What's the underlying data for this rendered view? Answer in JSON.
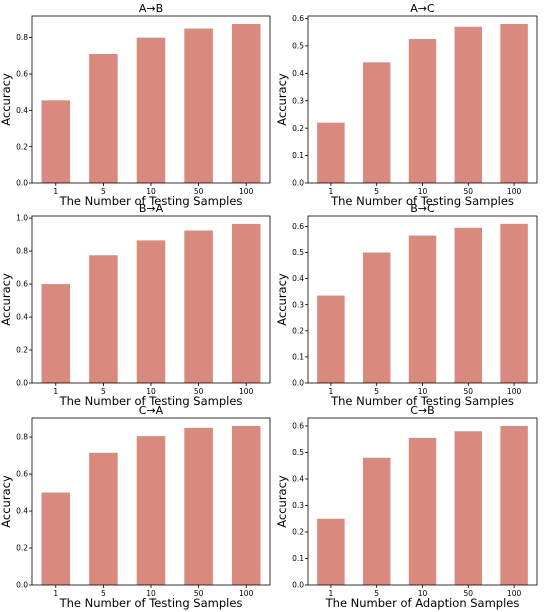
{
  "chart_data": [
    {
      "type": "bar",
      "title": "A→B",
      "xlabel": "The Number of Testing Samples",
      "ylabel": "Accuracy",
      "categories": [
        "1",
        "5",
        "10",
        "50",
        "100"
      ],
      "values": [
        0.455,
        0.71,
        0.8,
        0.85,
        0.875
      ],
      "ylim": [
        0,
        0.919
      ],
      "yticks": [
        0.0,
        0.2,
        0.4,
        0.6,
        0.8
      ],
      "ytick_labels": [
        "0.0",
        "0.2",
        "0.4",
        "0.6",
        "0.8"
      ],
      "color": "#d9897e"
    },
    {
      "type": "bar",
      "title": "A→C",
      "xlabel": "The Number of Testing Samples",
      "ylabel": "Accuracy",
      "categories": [
        "1",
        "5",
        "10",
        "50",
        "100"
      ],
      "values": [
        0.22,
        0.44,
        0.525,
        0.57,
        0.58
      ],
      "ylim": [
        0,
        0.609
      ],
      "yticks": [
        0.0,
        0.1,
        0.2,
        0.3,
        0.4,
        0.5,
        0.6
      ],
      "ytick_labels": [
        "0.0",
        "0.1",
        "0.2",
        "0.3",
        "0.4",
        "0.5",
        "0.6"
      ],
      "color": "#d9897e"
    },
    {
      "type": "bar",
      "title": "B→A",
      "xlabel": "The Number of Testing Samples",
      "ylabel": "Accuracy",
      "categories": [
        "1",
        "5",
        "10",
        "50",
        "100"
      ],
      "values": [
        0.6,
        0.775,
        0.865,
        0.925,
        0.965
      ],
      "ylim": [
        0,
        1.013
      ],
      "yticks": [
        0.0,
        0.2,
        0.4,
        0.6,
        0.8,
        1.0
      ],
      "ytick_labels": [
        "0.0",
        "0.2",
        "0.4",
        "0.6",
        "0.8",
        "1.0"
      ],
      "color": "#d9897e"
    },
    {
      "type": "bar",
      "title": "B→C",
      "xlabel": "The Number of Testing Samples",
      "ylabel": "Accuracy",
      "categories": [
        "1",
        "5",
        "10",
        "50",
        "100"
      ],
      "values": [
        0.335,
        0.5,
        0.565,
        0.595,
        0.61
      ],
      "ylim": [
        0,
        0.64
      ],
      "yticks": [
        0.0,
        0.1,
        0.2,
        0.3,
        0.4,
        0.5,
        0.6
      ],
      "ytick_labels": [
        "0.0",
        "0.1",
        "0.2",
        "0.3",
        "0.4",
        "0.5",
        "0.6"
      ],
      "color": "#d9897e"
    },
    {
      "type": "bar",
      "title": "C→A",
      "xlabel": "The Number of Testing Samples",
      "ylabel": "Accuracy",
      "categories": [
        "1",
        "5",
        "10",
        "50",
        "100"
      ],
      "values": [
        0.5,
        0.715,
        0.805,
        0.85,
        0.86
      ],
      "ylim": [
        0,
        0.903
      ],
      "yticks": [
        0.0,
        0.2,
        0.4,
        0.6,
        0.8
      ],
      "ytick_labels": [
        "0.0",
        "0.2",
        "0.4",
        "0.6",
        "0.8"
      ],
      "color": "#d9897e"
    },
    {
      "type": "bar",
      "title": "C→B",
      "xlabel": "The Number of Adaption Samples",
      "ylabel": "Accuracy",
      "categories": [
        "1",
        "5",
        "10",
        "50",
        "100"
      ],
      "values": [
        0.25,
        0.48,
        0.555,
        0.58,
        0.6
      ],
      "ylim": [
        0,
        0.63
      ],
      "yticks": [
        0.0,
        0.1,
        0.2,
        0.3,
        0.4,
        0.5,
        0.6
      ],
      "ytick_labels": [
        "0.0",
        "0.1",
        "0.2",
        "0.3",
        "0.4",
        "0.5",
        "0.6"
      ],
      "color": "#d9897e"
    }
  ]
}
